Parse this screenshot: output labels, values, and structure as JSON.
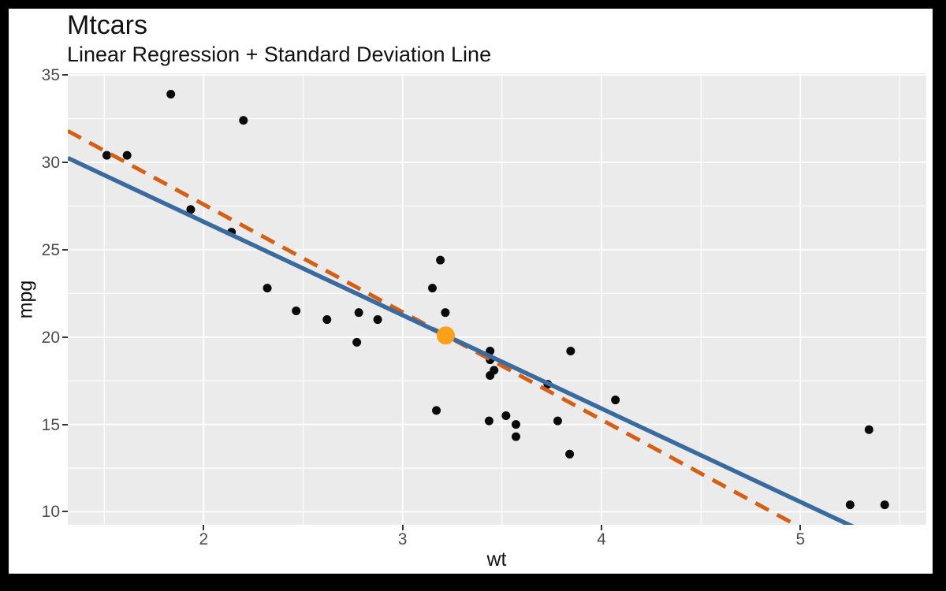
{
  "colors": {
    "frame": "#000000",
    "card_background": "#FFFFFF",
    "panel_background": "#EBEBEB",
    "gridline": "#FFFFFF",
    "tick_mark": "#333333",
    "tick_label": "#4D4D4D",
    "text": "#121212",
    "scatter_point": "#0A0A0A",
    "regression_line": "#3A6B9E",
    "sd_line": "#D65F14",
    "mean_point": "#FAA019"
  },
  "chart_data": {
    "type": "scatter",
    "title": "Mtcars",
    "subtitle": "Linear Regression + Standard Deviation Line",
    "xlabel": "wt",
    "ylabel": "mpg",
    "xlim": [
      1.317,
      5.633
    ],
    "ylim": [
      9.255,
      35.095
    ],
    "x_major_ticks": [
      2,
      3,
      4,
      5
    ],
    "y_major_ticks": [
      10,
      15,
      20,
      25,
      30,
      35
    ],
    "x_minor_gridlines": [
      1.5,
      2.5,
      3.5,
      4.5,
      5.5
    ],
    "y_minor_gridlines": [
      12.5,
      17.5,
      22.5,
      27.5,
      32.5
    ],
    "grid": true,
    "legend": "none",
    "series": [
      {
        "name": "mtcars points (wt, mpg)",
        "color": "#0A0A0A",
        "point_radius": 5.5,
        "points": [
          [
            2.62,
            21.0
          ],
          [
            2.875,
            21.0
          ],
          [
            2.32,
            22.8
          ],
          [
            3.215,
            21.4
          ],
          [
            3.44,
            18.7
          ],
          [
            3.46,
            18.1
          ],
          [
            3.57,
            14.3
          ],
          [
            3.19,
            24.4
          ],
          [
            3.15,
            22.8
          ],
          [
            3.44,
            19.2
          ],
          [
            3.44,
            17.8
          ],
          [
            4.07,
            16.4
          ],
          [
            3.73,
            17.3
          ],
          [
            3.78,
            15.2
          ],
          [
            5.25,
            10.4
          ],
          [
            5.424,
            10.4
          ],
          [
            5.345,
            14.7
          ],
          [
            2.2,
            32.4
          ],
          [
            1.615,
            30.4
          ],
          [
            1.835,
            33.9
          ],
          [
            2.465,
            21.5
          ],
          [
            3.52,
            15.5
          ],
          [
            3.435,
            15.2
          ],
          [
            3.84,
            13.3
          ],
          [
            3.845,
            19.2
          ],
          [
            1.935,
            27.3
          ],
          [
            2.14,
            26.0
          ],
          [
            1.513,
            30.4
          ],
          [
            3.17,
            15.8
          ],
          [
            2.77,
            19.7
          ],
          [
            3.57,
            15.0
          ],
          [
            2.78,
            21.4
          ]
        ]
      }
    ],
    "lines": [
      {
        "name": "standard-deviation-line",
        "style": "dashed",
        "dash": [
          19,
          12
        ],
        "color": "#D65F14",
        "width": 5,
        "slope": -6.159,
        "intercept": 39.907
      },
      {
        "name": "linear-regression-line",
        "style": "solid",
        "color": "#3A6B9E",
        "width": 5.5,
        "slope": -5.344,
        "intercept": 37.285
      }
    ],
    "mean_point": {
      "x": 3.217,
      "y": 20.091,
      "color": "#FAA019",
      "radius": 11.5
    }
  }
}
